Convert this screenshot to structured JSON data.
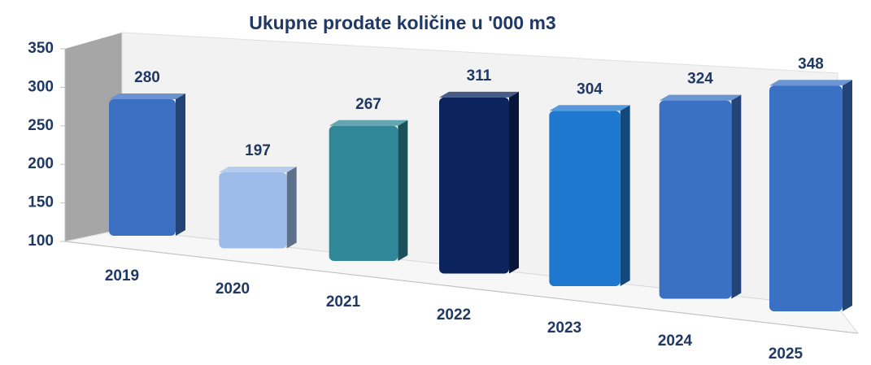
{
  "chart_data": {
    "type": "bar3d",
    "title": "Ukupne prodate količine u  '000 m3",
    "categories": [
      "2019",
      "2020",
      "2021",
      "2022",
      "2023",
      "2024",
      "2025"
    ],
    "values": [
      280,
      197,
      267,
      311,
      304,
      324,
      348
    ],
    "colors": [
      "#3b6fc2",
      "#9dbce9",
      "#2f8797",
      "#0b245e",
      "#1f78d0",
      "#3a71c4",
      "#3a71c4"
    ],
    "ylim": [
      100,
      350
    ],
    "yticks": [
      100,
      150,
      200,
      250,
      300,
      350
    ],
    "grid": false
  }
}
